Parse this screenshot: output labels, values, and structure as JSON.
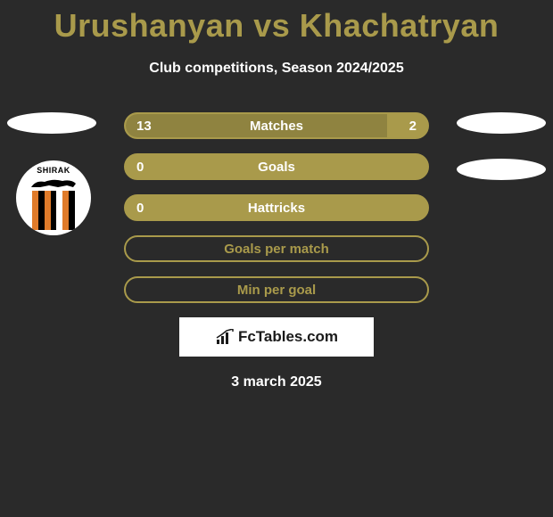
{
  "title": "Urushanyan vs Khachatryan",
  "subtitle": "Club competitions, Season 2024/2025",
  "colors": {
    "primary": "#a99a4b",
    "primary_dark": "#8f8340",
    "bg": "#2a2a2a",
    "white": "#ffffff",
    "orange": "#e07b2a",
    "black": "#000000"
  },
  "badge": {
    "name": "SHIRAK",
    "stripe_colors": [
      "#e07b2a",
      "#000000",
      "#e07b2a",
      "#000000",
      "#ffffff",
      "#e07b2a",
      "#000000"
    ]
  },
  "bars": [
    {
      "label": "Matches",
      "left": "13",
      "right": "2",
      "left_pct": 86.7,
      "right_pct": 13.3,
      "show_left": true,
      "show_right": true,
      "filled": true
    },
    {
      "label": "Goals",
      "left": "0",
      "right": "",
      "left_pct": 0,
      "right_pct": 0,
      "show_left": true,
      "show_right": false,
      "filled": true
    },
    {
      "label": "Hattricks",
      "left": "0",
      "right": "",
      "left_pct": 0,
      "right_pct": 0,
      "show_left": true,
      "show_right": false,
      "filled": true
    },
    {
      "label": "Goals per match",
      "left": "",
      "right": "",
      "left_pct": 0,
      "right_pct": 0,
      "show_left": false,
      "show_right": false,
      "filled": false
    },
    {
      "label": "Min per goal",
      "left": "",
      "right": "",
      "left_pct": 0,
      "right_pct": 0,
      "show_left": false,
      "show_right": false,
      "filled": false
    }
  ],
  "logo": "FcTables.com",
  "date": "3 march 2025",
  "bar_style": {
    "label_fontsize": 15,
    "value_fontsize": 15,
    "height": 30,
    "border_radius": 15
  }
}
